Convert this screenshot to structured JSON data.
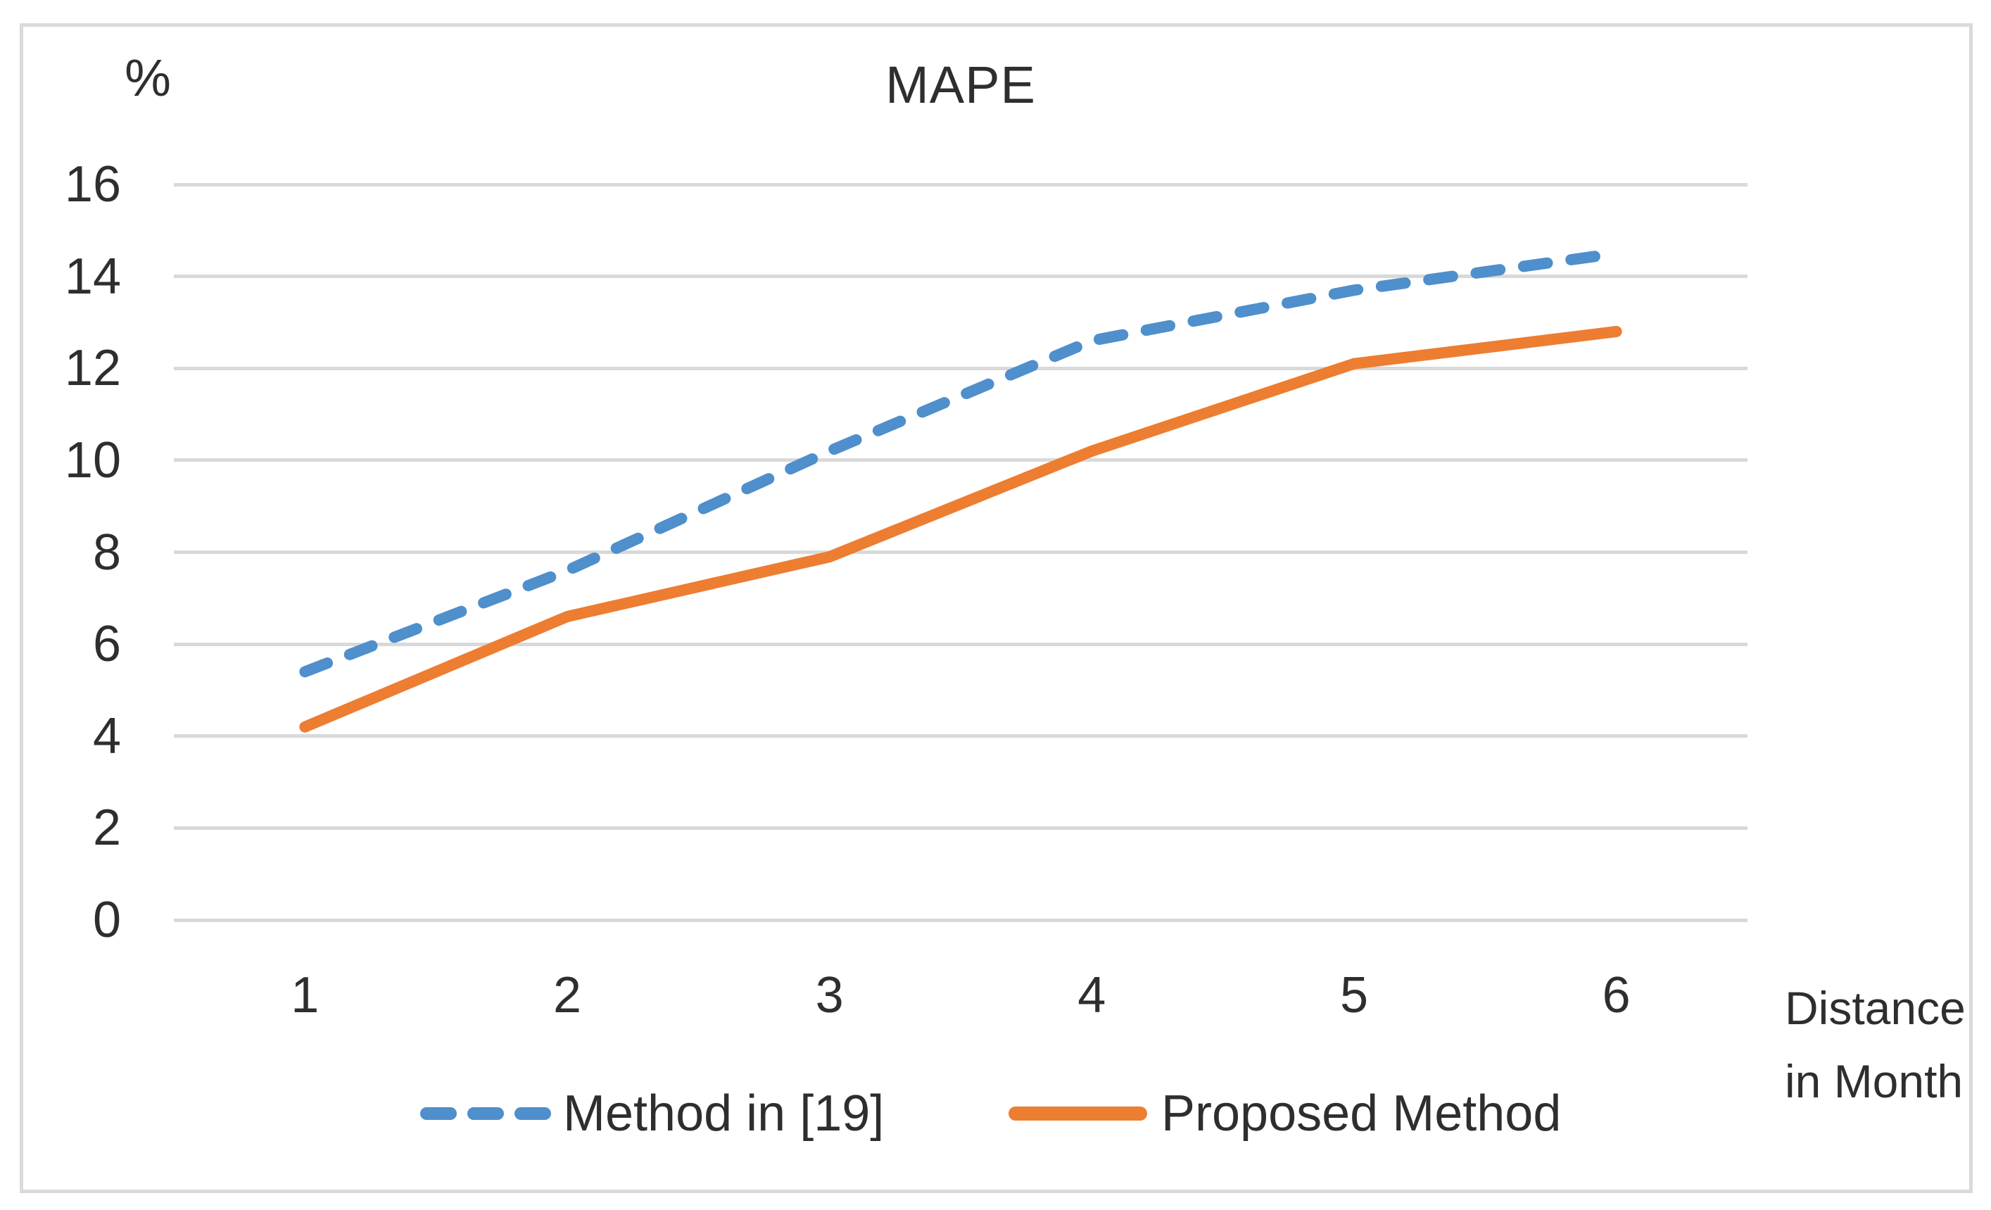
{
  "chart_data": {
    "type": "line",
    "title": "MAPE",
    "y_unit_label": "%",
    "xlabel_line1": "Distance",
    "xlabel_line2": "in Month",
    "categories": [
      "1",
      "2",
      "3",
      "4",
      "5",
      "6"
    ],
    "series": [
      {
        "name": "Method in [19]",
        "values": [
          5.4,
          7.6,
          10.2,
          12.6,
          13.7,
          14.5
        ],
        "color": "#4E8FCC",
        "line_style": "dashed"
      },
      {
        "name": "Proposed Method",
        "values": [
          4.2,
          6.6,
          7.9,
          10.2,
          12.1,
          12.8
        ],
        "color": "#ED7D31",
        "line_style": "solid"
      }
    ],
    "ylim": [
      0,
      16
    ],
    "y_ticks": [
      0,
      2,
      4,
      6,
      8,
      10,
      12,
      14,
      16
    ],
    "grid": true,
    "legend_position": "bottom"
  },
  "colors": {
    "gridline": "#D9D9D9",
    "frame_border": "#DADADA",
    "text": "#2e2e2e"
  }
}
